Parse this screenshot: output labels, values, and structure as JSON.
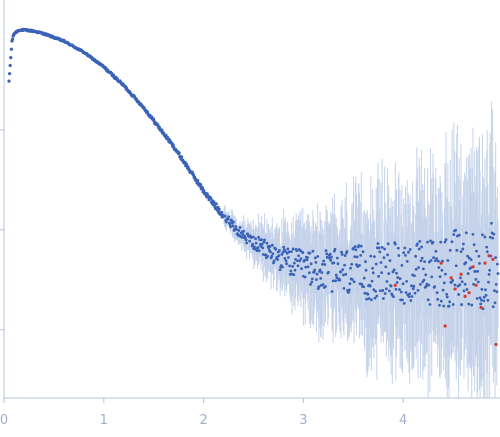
{
  "chart_data": {
    "type": "scatter",
    "title": "",
    "xlabel": "",
    "ylabel": "",
    "xlim": [
      0,
      4.95
    ],
    "ylim": [
      0,
      1
    ],
    "x_ticks": [
      0,
      1,
      2,
      3,
      4
    ],
    "x_tick_labels": [
      "0",
      "1",
      "2",
      "3",
      "4"
    ],
    "y_ticks": [
      0.19,
      0.46,
      0.73
    ],
    "y_tick_labels": [
      "",
      "",
      ""
    ],
    "grid": false,
    "legend": "none",
    "colors": {
      "points": "#3a63b8",
      "error_bars": "#c5d3ea",
      "outliers": "#d93a2b",
      "axes": "#b7c3dc",
      "tick_text": "#9fb0cf"
    },
    "series": [
      {
        "role": "main",
        "x": [
          0.05,
          0.08,
          0.1,
          0.15,
          0.2,
          0.3,
          0.4,
          0.5,
          0.6,
          0.7,
          0.8,
          0.9,
          1.0,
          1.1,
          1.2,
          1.3,
          1.4,
          1.5,
          1.6,
          1.7,
          1.8,
          1.9,
          2.0,
          2.1,
          2.2,
          2.3,
          2.4,
          2.5,
          2.6,
          2.7,
          2.8,
          2.9,
          3.0,
          3.2,
          3.4,
          3.6,
          3.8,
          4.0,
          4.2,
          4.4,
          4.6,
          4.8,
          4.95
        ],
        "y": [
          0.86,
          0.97,
          0.99,
          1.0,
          1.0,
          0.997,
          0.99,
          0.98,
          0.97,
          0.955,
          0.94,
          0.92,
          0.9,
          0.875,
          0.85,
          0.82,
          0.79,
          0.755,
          0.72,
          0.685,
          0.645,
          0.605,
          0.565,
          0.53,
          0.5,
          0.47,
          0.445,
          0.425,
          0.41,
          0.395,
          0.38,
          0.37,
          0.36,
          0.35,
          0.345,
          0.345,
          0.345,
          0.345,
          0.345,
          0.35,
          0.355,
          0.36,
          0.365
        ],
        "y_scatter": [
          0.002,
          0.002,
          0.002,
          0.002,
          0.002,
          0.002,
          0.002,
          0.002,
          0.002,
          0.002,
          0.002,
          0.002,
          0.003,
          0.003,
          0.003,
          0.003,
          0.003,
          0.004,
          0.004,
          0.004,
          0.005,
          0.005,
          0.006,
          0.008,
          0.01,
          0.012,
          0.015,
          0.02,
          0.025,
          0.03,
          0.035,
          0.04,
          0.045,
          0.055,
          0.065,
          0.075,
          0.08,
          0.085,
          0.09,
          0.1,
          0.11,
          0.115,
          0.12
        ]
      },
      {
        "role": "outliers",
        "x": [
          3.92,
          4.38,
          4.42,
          4.48,
          4.52,
          4.58,
          4.62,
          4.66,
          4.7,
          4.73,
          4.78,
          4.82,
          4.86,
          4.9,
          4.93
        ],
        "y": [
          0.31,
          0.37,
          0.2,
          0.33,
          0.3,
          0.34,
          0.28,
          0.29,
          0.36,
          0.31,
          0.25,
          0.37,
          0.39,
          0.38,
          0.15
        ]
      }
    ]
  }
}
